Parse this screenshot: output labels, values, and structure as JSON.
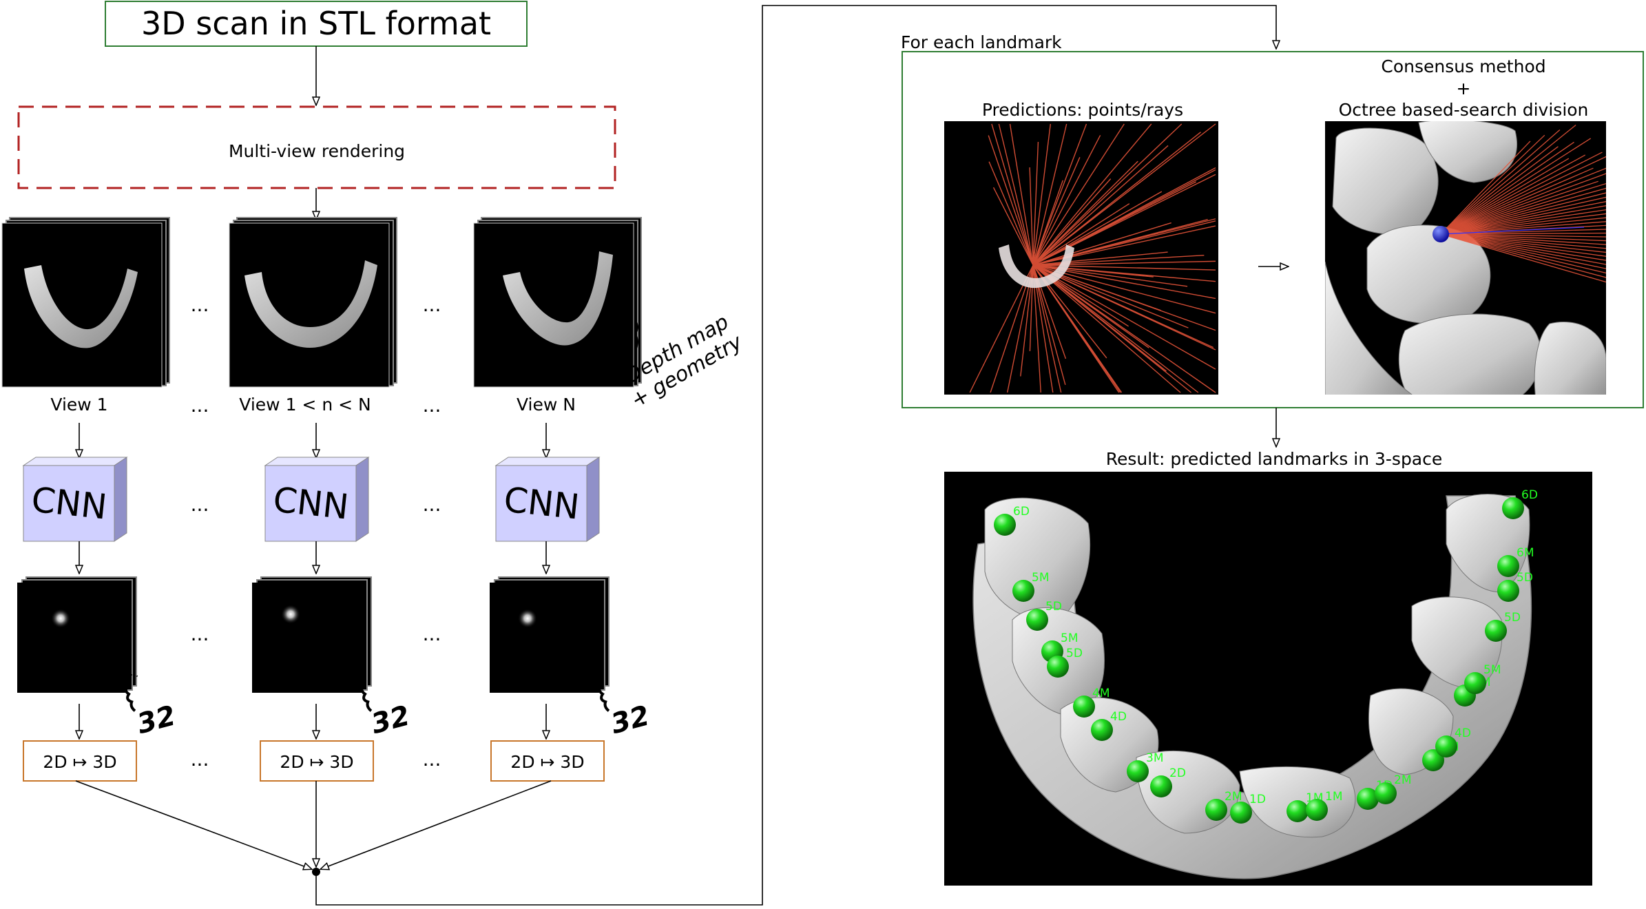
{
  "title": "3D scan in STL format",
  "rendering_label": "Multi-view rendering",
  "views": [
    {
      "label": "View 1",
      "cnn": "CNN",
      "op": "2D ↦ 3D"
    },
    {
      "label": "View 1 < n < N",
      "cnn": "CNN",
      "op": "2D ↦ 3D"
    },
    {
      "label": "View N",
      "cnn": "CNN",
      "op": "2D ↦ 3D"
    }
  ],
  "ellipsis": "...",
  "depth_annotation": [
    "Depth map",
    "+ geometry"
  ],
  "channel_count": "32",
  "landmark_box": {
    "caption": "For each landmark",
    "predictions_title": "Predictions: points/rays",
    "consensus_title": [
      "Consensus method",
      "+",
      "Octree based-search division"
    ]
  },
  "result_title": "Result: predicted landmarks in 3-space",
  "landmark_labels": [
    "6D",
    "5M",
    "5D",
    "5M",
    "5D",
    "4M",
    "4D",
    "3M",
    "2D",
    "2M",
    "1D",
    "1M",
    "1M",
    "1D",
    "2M",
    "3M",
    "4D",
    "4M",
    "5M",
    "5D",
    "6M",
    "5D",
    "6D"
  ],
  "colors": {
    "green_box": "#2e7d32",
    "red_dash": "#b22222",
    "orange_box": "#c8762a",
    "cnn_front": "#d0d0ff",
    "cnn_side": "#9090c8",
    "ray": "#e8553a",
    "landmark": "#22cc22",
    "consensus_point": "#1020d0"
  }
}
